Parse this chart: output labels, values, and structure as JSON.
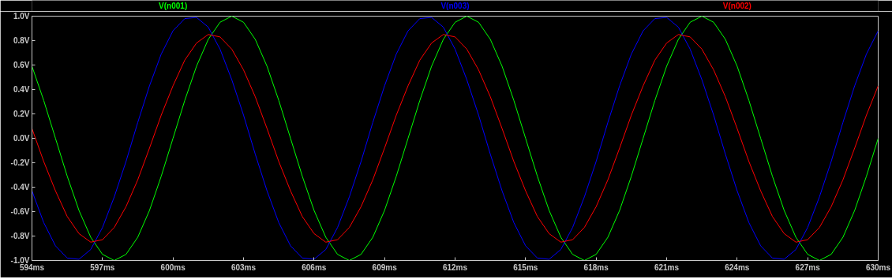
{
  "chart_data": {
    "type": "line",
    "grid": false,
    "marker": "none",
    "line_style": "solid",
    "x": [
      594,
      594.5,
      595,
      595.5,
      596,
      596.5,
      597,
      597.5,
      598,
      598.5,
      599,
      599.5,
      600,
      600.5,
      601,
      601.5,
      602,
      602.5,
      603,
      603.5,
      604,
      604.5,
      605,
      605.5,
      606,
      606.5,
      607,
      607.5,
      608,
      608.5,
      609,
      609.5,
      610,
      610.5,
      611,
      611.5,
      612,
      612.5,
      613,
      613.5,
      614,
      614.5,
      615,
      615.5,
      616,
      616.5,
      617,
      617.5,
      618,
      618.5,
      619,
      619.5,
      620,
      620.5,
      621,
      621.5,
      622,
      622.5,
      623,
      623.5,
      624,
      624.5,
      625,
      625.5,
      626,
      626.5,
      627,
      627.5,
      628,
      628.5,
      629,
      629.5,
      630
    ],
    "xlim": [
      594,
      630
    ],
    "xticks": [
      {
        "value": 594,
        "label": "594ms"
      },
      {
        "value": 597,
        "label": "597ms"
      },
      {
        "value": 600,
        "label": "600ms"
      },
      {
        "value": 603,
        "label": "603ms"
      },
      {
        "value": 606,
        "label": "606ms"
      },
      {
        "value": 609,
        "label": "609ms"
      },
      {
        "value": 612,
        "label": "612ms"
      },
      {
        "value": 615,
        "label": "615ms"
      },
      {
        "value": 618,
        "label": "618ms"
      },
      {
        "value": 621,
        "label": "621ms"
      },
      {
        "value": 624,
        "label": "624ms"
      },
      {
        "value": 627,
        "label": "627ms"
      },
      {
        "value": 630,
        "label": "630ms"
      }
    ],
    "ylim": [
      -1.0,
      1.0
    ],
    "yticks": [
      {
        "value": -1.0,
        "label": "-1.0V"
      },
      {
        "value": -0.8,
        "label": "-0.8V"
      },
      {
        "value": -0.6,
        "label": "-0.6V"
      },
      {
        "value": -0.4,
        "label": "-0.4V"
      },
      {
        "value": -0.2,
        "label": "-0.2V"
      },
      {
        "value": 0.0,
        "label": "0.0V"
      },
      {
        "value": 0.2,
        "label": "0.2V"
      },
      {
        "value": 0.4,
        "label": "0.4V"
      },
      {
        "value": 0.6,
        "label": "0.6V"
      },
      {
        "value": 0.8,
        "label": "0.8V"
      },
      {
        "value": 1.0,
        "label": "1.0V"
      }
    ],
    "series": [
      {
        "name": "V(n001)",
        "color": "#00ff00",
        "values": [
          0.59,
          0.31,
          0,
          -0.31,
          -0.59,
          -0.81,
          -0.95,
          -1,
          -0.95,
          -0.81,
          -0.59,
          -0.31,
          0,
          0.31,
          0.59,
          0.81,
          0.95,
          1,
          0.95,
          0.81,
          0.59,
          0.31,
          0,
          -0.31,
          -0.59,
          -0.81,
          -0.95,
          -1,
          -0.95,
          -0.81,
          -0.59,
          -0.31,
          0,
          0.31,
          0.59,
          0.81,
          0.95,
          1,
          0.95,
          0.81,
          0.59,
          0.31,
          0,
          -0.31,
          -0.59,
          -0.81,
          -0.95,
          -1,
          -0.95,
          -0.81,
          -0.59,
          -0.31,
          0,
          0.31,
          0.59,
          0.81,
          0.95,
          1,
          0.95,
          0.81,
          0.59,
          0.31,
          0,
          -0.31,
          -0.59,
          -0.81,
          -0.95,
          -1,
          -0.95,
          -0.81,
          -0.59,
          -0.31,
          0
        ]
      },
      {
        "name": "V(n003)",
        "color": "#0000ff",
        "values": [
          -0.43,
          -0.69,
          -0.88,
          -0.98,
          -0.99,
          -0.91,
          -0.73,
          -0.48,
          -0.19,
          0.13,
          0.43,
          0.69,
          0.88,
          0.98,
          0.99,
          0.91,
          0.73,
          0.48,
          0.19,
          -0.13,
          -0.43,
          -0.69,
          -0.88,
          -0.98,
          -0.99,
          -0.91,
          -0.73,
          -0.48,
          -0.19,
          0.13,
          0.43,
          0.69,
          0.88,
          0.98,
          0.99,
          0.91,
          0.73,
          0.48,
          0.19,
          -0.13,
          -0.43,
          -0.69,
          -0.88,
          -0.98,
          -0.99,
          -0.91,
          -0.73,
          -0.48,
          -0.19,
          0.13,
          0.43,
          0.69,
          0.88,
          0.98,
          0.99,
          0.91,
          0.73,
          0.48,
          0.19,
          -0.13,
          -0.43,
          -0.69,
          -0.88,
          -0.98,
          -0.99,
          -0.91,
          -0.73,
          -0.48,
          -0.19,
          0.13,
          0.43,
          0.69,
          0.88
        ]
      },
      {
        "name": "V(n002)",
        "color": "#ff0000",
        "values": [
          0.08,
          -0.19,
          -0.43,
          -0.64,
          -0.78,
          -0.85,
          -0.83,
          -0.73,
          -0.56,
          -0.34,
          -0.08,
          0.19,
          0.43,
          0.64,
          0.78,
          0.85,
          0.83,
          0.73,
          0.56,
          0.34,
          0.08,
          -0.19,
          -0.43,
          -0.64,
          -0.78,
          -0.85,
          -0.83,
          -0.73,
          -0.56,
          -0.34,
          -0.08,
          0.19,
          0.43,
          0.64,
          0.78,
          0.85,
          0.83,
          0.73,
          0.56,
          0.34,
          0.08,
          -0.19,
          -0.43,
          -0.64,
          -0.78,
          -0.85,
          -0.83,
          -0.73,
          -0.56,
          -0.34,
          -0.08,
          0.19,
          0.43,
          0.64,
          0.78,
          0.85,
          0.83,
          0.73,
          0.56,
          0.34,
          0.08,
          -0.19,
          -0.43,
          -0.64,
          -0.78,
          -0.85,
          -0.83,
          -0.73,
          -0.56,
          -0.34,
          -0.08,
          0.19,
          0.43
        ]
      }
    ]
  }
}
